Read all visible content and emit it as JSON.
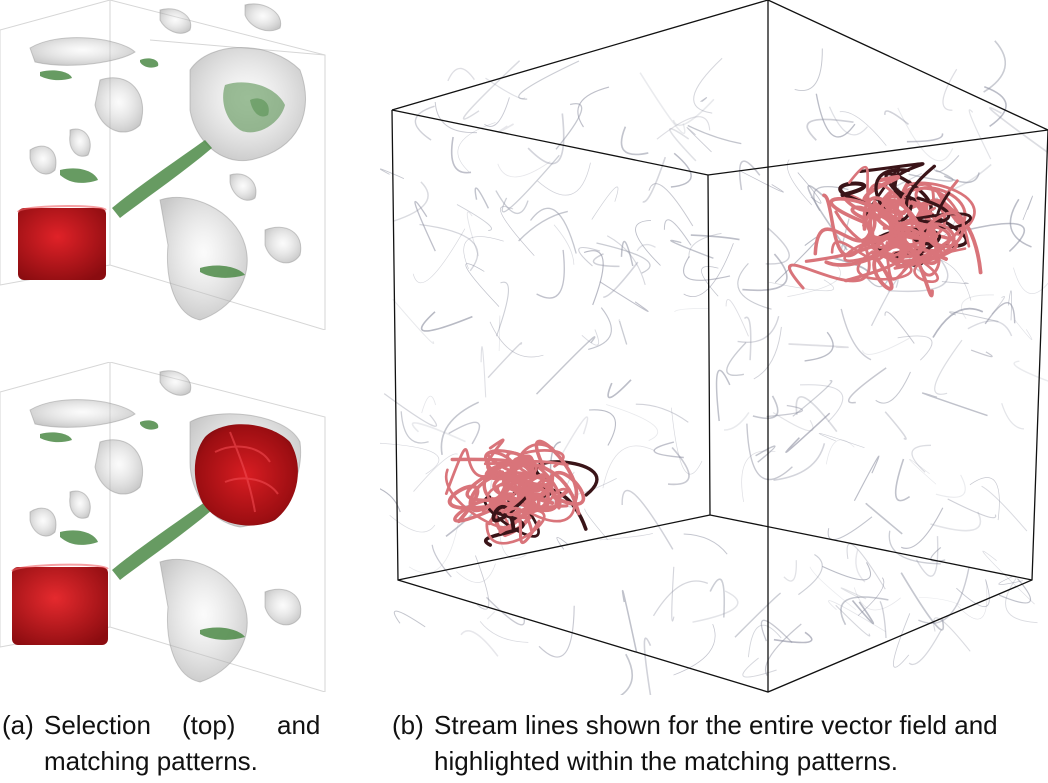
{
  "figure": {
    "panel_a": {
      "caption_tag": "(a)",
      "caption_line1_words": [
        "Selection",
        "(top)",
        "and"
      ],
      "caption_line2": "matching patterns."
    },
    "panel_b": {
      "caption_tag": "(b)",
      "caption_line1": "Stream lines shown for the entire vector field and",
      "caption_line2": "highlighted within the matching patterns."
    }
  },
  "colors": {
    "selection_red": "#c0141a",
    "iso_green": "#3f7f3a",
    "iso_grey": "#bcbcbc",
    "stream_grey": "#8c8fa0",
    "highlight_pink": "#d9747a",
    "highlight_dark": "#3a1418"
  }
}
